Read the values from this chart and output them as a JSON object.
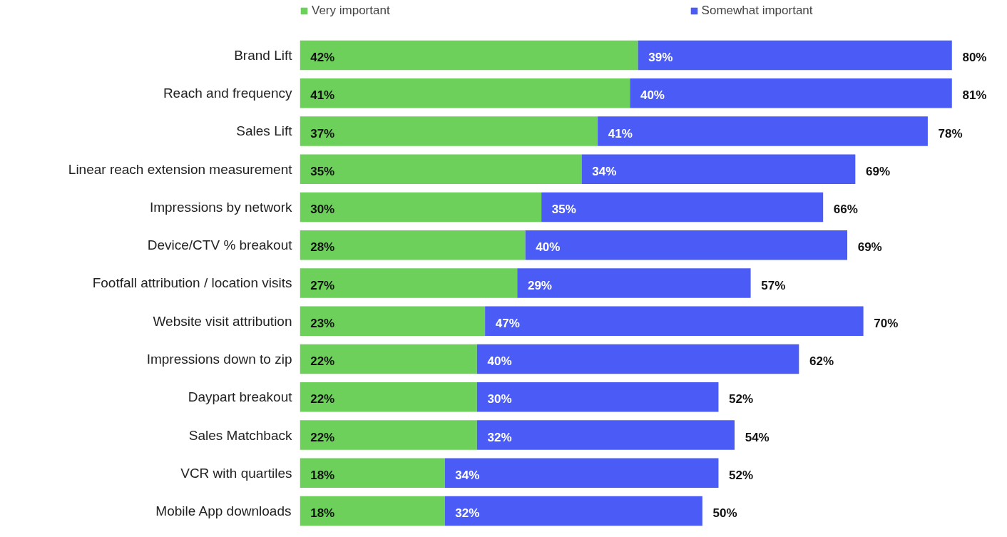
{
  "chart_data": {
    "type": "bar",
    "orientation": "horizontal",
    "stacked": true,
    "legend": "top",
    "grid": false,
    "categories": [
      "Brand Lift",
      "Reach and frequency",
      "Sales Lift",
      "Linear reach extension measurement",
      "Impressions by network",
      "Device/CTV % breakout",
      "Footfall attribution / location visits",
      "Website visit attribution",
      "Impressions down to zip",
      "Daypart breakout",
      "Sales Matchback",
      "VCR with quartiles",
      "Mobile App downloads"
    ],
    "series": [
      {
        "name": "Very important",
        "color": "#6dd05a",
        "values": [
          42,
          41,
          37,
          35,
          30,
          28,
          27,
          23,
          22,
          22,
          22,
          18,
          18
        ],
        "value_labels": [
          "42%",
          "41%",
          "37%",
          "35%",
          "30%",
          "28%",
          "27%",
          "23%",
          "22%",
          "22%",
          "22%",
          "18%",
          "18%"
        ]
      },
      {
        "name": "Somewhat important",
        "color": "#4a5cf5",
        "values": [
          39,
          40,
          41,
          34,
          35,
          40,
          29,
          47,
          40,
          30,
          32,
          34,
          32
        ],
        "value_labels": [
          "39%",
          "40%",
          "41%",
          "34%",
          "35%",
          "40%",
          "29%",
          "47%",
          "40%",
          "30%",
          "32%",
          "34%",
          "32%"
        ]
      }
    ],
    "totals": [
      "80%",
      "81%",
      "78%",
      "69%",
      "66%",
      "69%",
      "57%",
      "70%",
      "62%",
      "52%",
      "54%",
      "52%",
      "50%"
    ]
  }
}
